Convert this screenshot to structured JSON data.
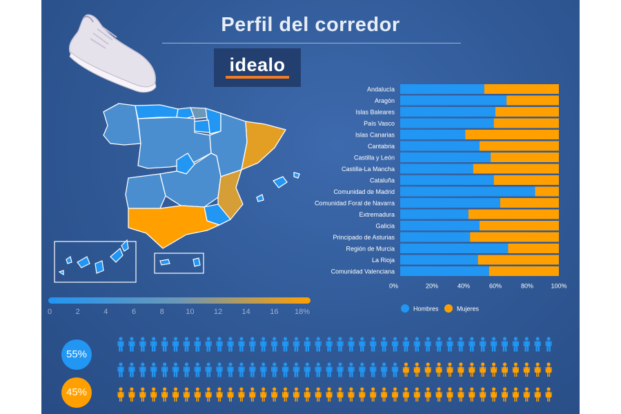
{
  "page": {
    "title": "Perfil del corredor",
    "logo": "idealo"
  },
  "colors": {
    "hombres": "#2196f3",
    "mujeres": "#ffa000",
    "background": "#2f5894"
  },
  "map": {
    "scale_ticks": [
      "0",
      "2",
      "4",
      "6",
      "8",
      "10",
      "12",
      "14",
      "16",
      "18%"
    ],
    "scale_range": [
      0,
      18
    ]
  },
  "chart_data": [
    {
      "type": "bar",
      "orientation": "horizontal",
      "stacked": true,
      "normalized": true,
      "categories": [
        "Andalucía",
        "Aragón",
        "Islas Baleares",
        "País Vasco",
        "Islas Canarias",
        "Cantabria",
        "Castilla y León",
        "Castilla-La Mancha",
        "Cataluña",
        "Comunidad de Madrid",
        "Comunidad Foral de Navarra",
        "Extremadura",
        "Galicia",
        "Principado de Asturias",
        "Región de Murcia",
        "La Rioja",
        "Comunidad Valenciana"
      ],
      "series": [
        {
          "name": "Hombres",
          "values": [
            53,
            67,
            60,
            59,
            41,
            50,
            57,
            46,
            59,
            85,
            63,
            43,
            50,
            44,
            68,
            49,
            56
          ]
        },
        {
          "name": "Mujeres",
          "values": [
            47,
            33,
            40,
            41,
            59,
            50,
            43,
            54,
            41,
            15,
            37,
            57,
            50,
            56,
            32,
            51,
            44
          ]
        }
      ],
      "x_ticks": [
        "0%",
        "20%",
        "40%",
        "60%",
        "80%",
        "100%"
      ],
      "xlim": [
        0,
        100
      ],
      "legend": [
        "Hombres",
        "Mujeres"
      ],
      "legend_position": "bottom"
    },
    {
      "type": "pictogram",
      "series": [
        {
          "name": "Hombres",
          "value": 55,
          "label": "55%"
        },
        {
          "name": "Mujeres",
          "value": 45,
          "label": "45%"
        }
      ],
      "total_icons": 120
    }
  ]
}
